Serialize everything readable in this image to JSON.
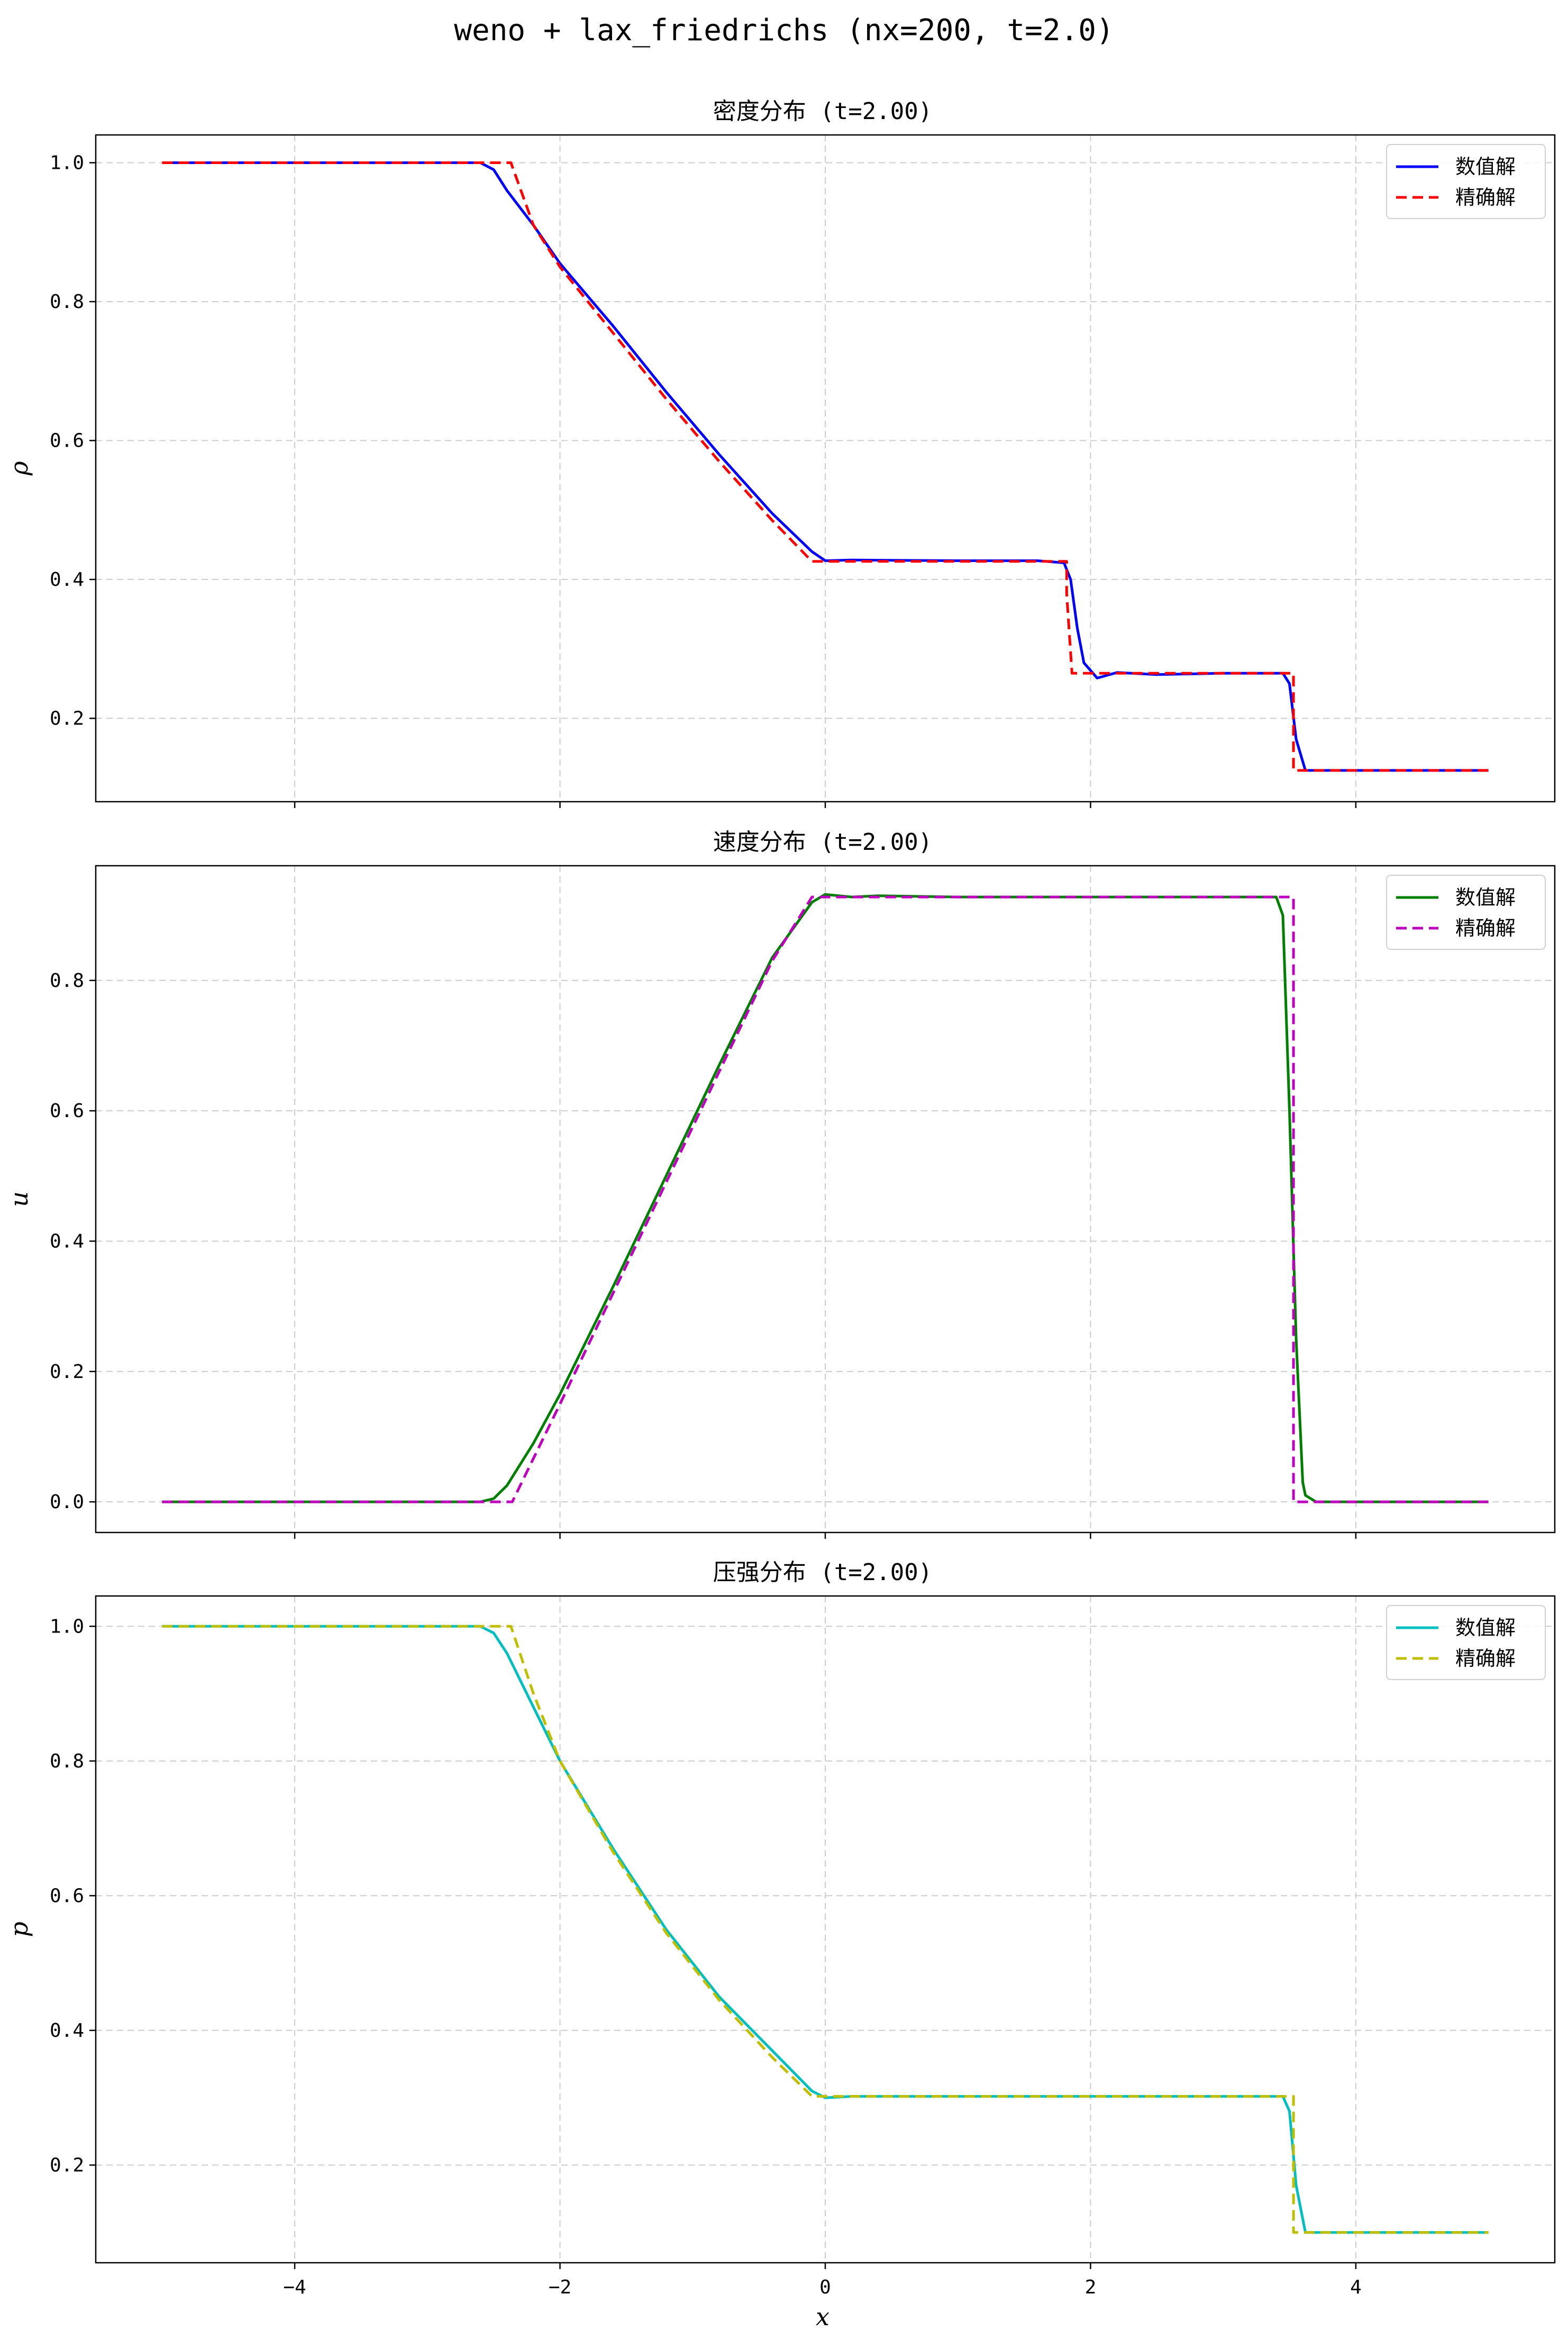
{
  "figure": {
    "suptitle": "weno + lax_friedrichs (nx=200, t=2.0)",
    "xlabel": "x",
    "background": "#ffffff",
    "grid_color": "#cccccc"
  },
  "chart_data": [
    {
      "type": "line",
      "title": "密度分布 (t=2.00)",
      "xlabel": "",
      "ylabel": "ρ",
      "xlim": [
        -5.5,
        5.5
      ],
      "ylim": [
        0.08,
        1.04
      ],
      "xticks": [
        -4,
        -2,
        0,
        2,
        4
      ],
      "xtick_labels": [
        "",
        "",
        "",
        "",
        ""
      ],
      "yticks": [
        0.2,
        0.4,
        0.6,
        0.8,
        1.0
      ],
      "ytick_labels": [
        "0.2",
        "0.4",
        "0.6",
        "0.8",
        "1.0"
      ],
      "grid": true,
      "legend_position": "top-right",
      "series": [
        {
          "name": "数值解",
          "color": "#0000ff",
          "style": "solid",
          "x": [
            -5.0,
            -2.6,
            -2.5,
            -2.4,
            -2.2,
            -2.0,
            -1.6,
            -1.2,
            -0.8,
            -0.4,
            -0.1,
            0.0,
            0.2,
            1.0,
            1.6,
            1.8,
            1.85,
            1.9,
            1.95,
            2.05,
            2.2,
            2.5,
            3.0,
            3.45,
            3.5,
            3.55,
            3.62,
            5.0
          ],
          "y": [
            1.0,
            1.0,
            0.99,
            0.96,
            0.91,
            0.855,
            0.765,
            0.67,
            0.58,
            0.495,
            0.44,
            0.427,
            0.428,
            0.427,
            0.427,
            0.424,
            0.4,
            0.33,
            0.28,
            0.258,
            0.266,
            0.263,
            0.265,
            0.265,
            0.25,
            0.17,
            0.125,
            0.125
          ]
        },
        {
          "name": "精确解",
          "color": "#ff0000",
          "style": "dashed",
          "x": [
            -5.0,
            -2.37,
            -2.2,
            -2.0,
            -1.6,
            -1.2,
            -0.8,
            -0.4,
            -0.1,
            1.82,
            1.82,
            1.86,
            3.53,
            3.53,
            5.0
          ],
          "y": [
            1.0,
            1.0,
            0.91,
            0.85,
            0.755,
            0.66,
            0.57,
            0.485,
            0.426,
            0.426,
            0.38,
            0.265,
            0.265,
            0.125,
            0.125
          ]
        }
      ]
    },
    {
      "type": "line",
      "title": "速度分布 (t=2.00)",
      "xlabel": "",
      "ylabel": "u",
      "xlim": [
        -5.5,
        5.5
      ],
      "ylim": [
        -0.047,
        0.976
      ],
      "xticks": [
        -4,
        -2,
        0,
        2,
        4
      ],
      "xtick_labels": [
        "",
        "",
        "",
        "",
        ""
      ],
      "yticks": [
        0.0,
        0.2,
        0.4,
        0.6,
        0.8
      ],
      "ytick_labels": [
        "0.0",
        "0.2",
        "0.4",
        "0.6",
        "0.8"
      ],
      "grid": true,
      "legend_position": "top-right",
      "series": [
        {
          "name": "数值解",
          "color": "#008000",
          "style": "solid",
          "x": [
            -5.0,
            -2.6,
            -2.5,
            -2.4,
            -2.2,
            -2.0,
            -1.6,
            -1.2,
            -0.8,
            -0.4,
            -0.1,
            0.0,
            0.2,
            0.4,
            1.0,
            3.4,
            3.45,
            3.5,
            3.55,
            3.6,
            3.62,
            3.7,
            5.0
          ],
          "y": [
            0.0,
            0.0,
            0.005,
            0.025,
            0.09,
            0.165,
            0.33,
            0.5,
            0.67,
            0.835,
            0.92,
            0.932,
            0.928,
            0.93,
            0.928,
            0.928,
            0.9,
            0.6,
            0.25,
            0.03,
            0.01,
            0.0,
            0.0
          ]
        },
        {
          "name": "精确解",
          "color": "#bf00bf",
          "style": "dashed",
          "x": [
            -5.0,
            -2.36,
            -2.0,
            -1.6,
            -1.2,
            -0.8,
            -0.4,
            -0.1,
            3.53,
            3.53,
            5.0
          ],
          "y": [
            0.0,
            0.0,
            0.15,
            0.32,
            0.49,
            0.66,
            0.83,
            0.928,
            0.928,
            0.0,
            0.0
          ]
        }
      ]
    },
    {
      "type": "line",
      "title": "压强分布 (t=2.00)",
      "xlabel": "x",
      "ylabel": "p",
      "xlim": [
        -5.5,
        5.5
      ],
      "ylim": [
        0.055,
        1.045
      ],
      "xticks": [
        -4,
        -2,
        0,
        2,
        4
      ],
      "xtick_labels": [
        "−4",
        "−2",
        "0",
        "2",
        "4"
      ],
      "yticks": [
        0.2,
        0.4,
        0.6,
        0.8,
        1.0
      ],
      "ytick_labels": [
        "0.2",
        "0.4",
        "0.6",
        "0.8",
        "1.0"
      ],
      "grid": true,
      "legend_position": "top-right",
      "series": [
        {
          "name": "数值解",
          "color": "#00bfbf",
          "style": "solid",
          "x": [
            -5.0,
            -2.6,
            -2.5,
            -2.4,
            -2.2,
            -2.0,
            -1.6,
            -1.2,
            -0.8,
            -0.4,
            -0.1,
            0.0,
            0.2,
            1.0,
            3.45,
            3.5,
            3.55,
            3.62,
            5.0
          ],
          "y": [
            1.0,
            1.0,
            0.99,
            0.96,
            0.88,
            0.8,
            0.67,
            0.55,
            0.45,
            0.37,
            0.31,
            0.3,
            0.302,
            0.302,
            0.302,
            0.28,
            0.17,
            0.1,
            0.1
          ]
        },
        {
          "name": "精确解",
          "color": "#bfbf00",
          "style": "dashed",
          "x": [
            -5.0,
            -2.37,
            -2.2,
            -2.0,
            -1.6,
            -1.2,
            -0.8,
            -0.4,
            -0.1,
            3.53,
            3.53,
            5.0
          ],
          "y": [
            1.0,
            1.0,
            0.9,
            0.8,
            0.665,
            0.545,
            0.445,
            0.36,
            0.302,
            0.302,
            0.1,
            0.1
          ]
        }
      ]
    }
  ]
}
